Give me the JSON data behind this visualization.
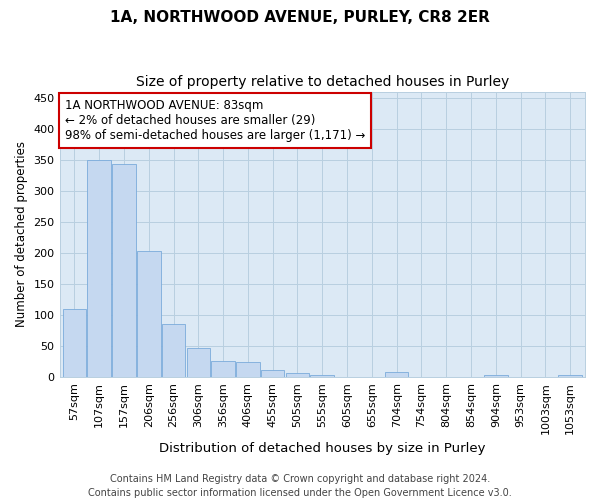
{
  "title": "1A, NORTHWOOD AVENUE, PURLEY, CR8 2ER",
  "subtitle": "Size of property relative to detached houses in Purley",
  "xlabel": "Distribution of detached houses by size in Purley",
  "ylabel": "Number of detached properties",
  "categories": [
    "57sqm",
    "107sqm",
    "157sqm",
    "206sqm",
    "256sqm",
    "306sqm",
    "356sqm",
    "406sqm",
    "455sqm",
    "505sqm",
    "555sqm",
    "605sqm",
    "655sqm",
    "704sqm",
    "754sqm",
    "804sqm",
    "854sqm",
    "904sqm",
    "953sqm",
    "1003sqm",
    "1053sqm"
  ],
  "values": [
    110,
    350,
    343,
    203,
    85,
    47,
    26,
    24,
    12,
    7,
    4,
    0,
    0,
    8,
    0,
    0,
    0,
    3,
    0,
    0,
    3
  ],
  "bar_color": "#c5d8f0",
  "bar_edge_color": "#7aabdb",
  "annotation_text": "1A NORTHWOOD AVENUE: 83sqm\n← 2% of detached houses are smaller (29)\n98% of semi-detached houses are larger (1,171) →",
  "annotation_box_facecolor": "#ffffff",
  "annotation_box_edgecolor": "#cc0000",
  "ylim": [
    0,
    460
  ],
  "yticks": [
    0,
    50,
    100,
    150,
    200,
    250,
    300,
    350,
    400,
    450
  ],
  "ax_facecolor": "#dce9f5",
  "background_color": "#ffffff",
  "grid_color": "#b8cfe0",
  "footer_text": "Contains HM Land Registry data © Crown copyright and database right 2024.\nContains public sector information licensed under the Open Government Licence v3.0.",
  "title_fontsize": 11,
  "subtitle_fontsize": 10,
  "xlabel_fontsize": 9.5,
  "ylabel_fontsize": 8.5,
  "tick_fontsize": 8,
  "annotation_fontsize": 8.5,
  "footer_fontsize": 7
}
